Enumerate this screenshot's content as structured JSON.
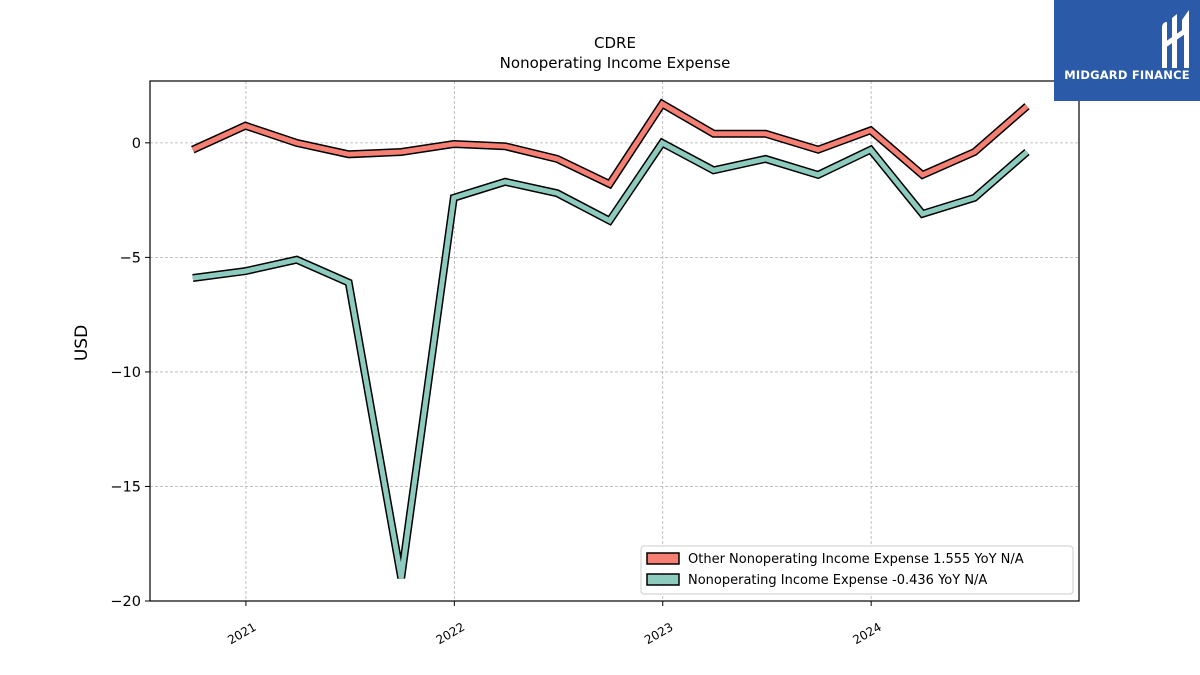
{
  "brand": {
    "name": "MIDGARD FINANCE",
    "bg_color": "#2a5aa8"
  },
  "chart_data": {
    "type": "line",
    "title": "CDRE",
    "subtitle": "Nonoperating Income Expense",
    "ylabel": "USD",
    "xlabel": "",
    "ylim": [
      -20,
      2.7
    ],
    "xlim": [
      "2020-07-17",
      "2024-12-30"
    ],
    "yticks": [
      0,
      -5,
      -10,
      -15,
      -20
    ],
    "ytick_labels": [
      "0",
      "−5",
      "−10",
      "−15",
      "−20"
    ],
    "xticks": [
      "2021-01-01",
      "2022-01-01",
      "2023-01-01",
      "2024-01-01"
    ],
    "xtick_labels": [
      "2021",
      "2022",
      "2023",
      "2024"
    ],
    "grid": true,
    "legend_position": "lower-right",
    "x": [
      "2020-09-30",
      "2020-12-31",
      "2021-03-31",
      "2021-06-30",
      "2021-09-30",
      "2021-12-31",
      "2022-03-31",
      "2022-06-30",
      "2022-09-30",
      "2022-12-31",
      "2023-03-31",
      "2023-06-30",
      "2023-09-30",
      "2023-12-31",
      "2024-03-31",
      "2024-06-30",
      "2024-09-30"
    ],
    "series": [
      {
        "name": "Other Nonoperating Income Expense",
        "legend_label": "Other Nonoperating Income Expense  1.555 YoY N/A",
        "color": "#f47f72",
        "values": [
          -0.3,
          0.75,
          0.0,
          -0.5,
          -0.4,
          -0.05,
          -0.15,
          -0.7,
          -1.8,
          1.7,
          0.4,
          0.4,
          -0.3,
          0.55,
          -1.4,
          -0.4,
          1.6
        ]
      },
      {
        "name": "Nonoperating Income Expense",
        "legend_label": "Nonoperating Income Expense  -0.436 YoY N/A",
        "color": "#8ccbbe",
        "values": [
          -5.9,
          -5.6,
          -5.1,
          -6.1,
          -19.0,
          -2.4,
          -1.7,
          -2.2,
          -3.4,
          0.0,
          -1.2,
          -0.7,
          -1.4,
          -0.3,
          -3.1,
          -2.4,
          -0.4
        ]
      }
    ]
  }
}
